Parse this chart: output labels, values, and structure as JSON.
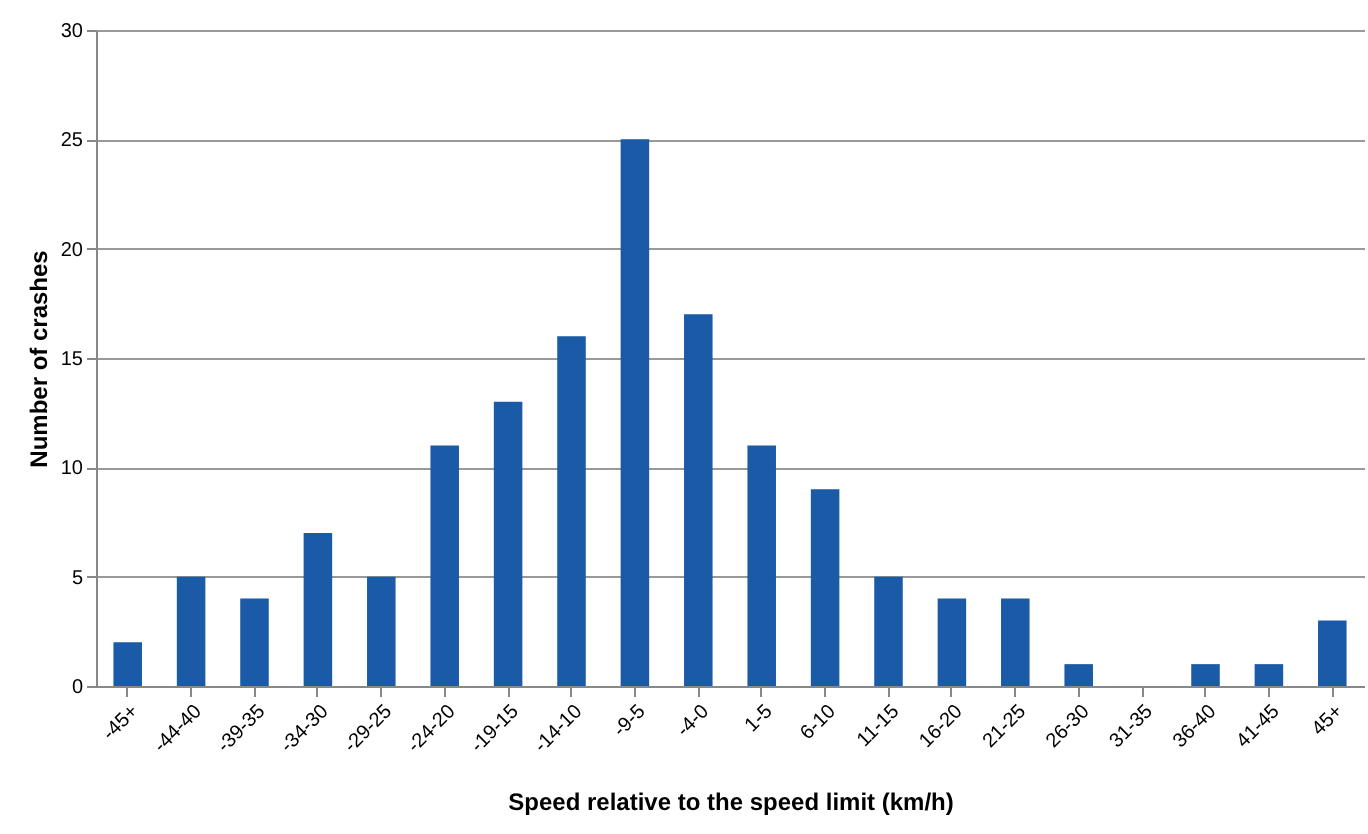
{
  "chart_data": {
    "type": "bar",
    "xlabel": "Speed relative to the speed limit (km/h)",
    "ylabel": "Number of crashes",
    "categories": [
      "-45+",
      "-44-40",
      "-39-35",
      "-34-30",
      "-29-25",
      "-24-20",
      "-19-15",
      "-14-10",
      "-9-5",
      "-4-0",
      "1-5",
      "6-10",
      "11-15",
      "16-20",
      "21-25",
      "26-30",
      "31-35",
      "36-40",
      "41-45",
      "45+"
    ],
    "values": [
      2,
      5,
      4,
      7,
      5,
      11,
      13,
      16,
      25,
      17,
      11,
      9,
      5,
      4,
      4,
      1,
      0,
      1,
      1,
      3
    ],
    "color": "#1a5aa6",
    "ylim": [
      0,
      30
    ],
    "yticks": [
      0,
      5,
      10,
      15,
      20,
      25,
      30
    ],
    "grid": "y"
  }
}
